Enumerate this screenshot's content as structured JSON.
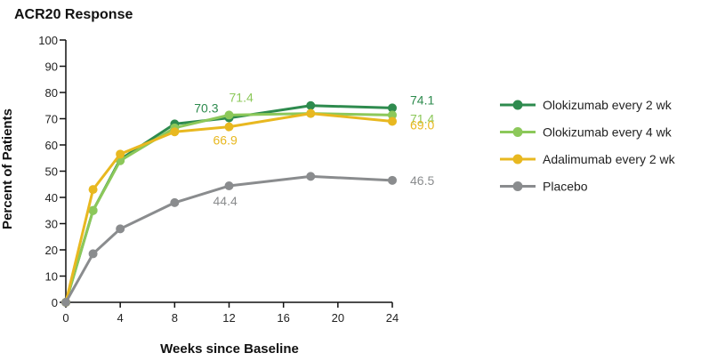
{
  "chart_data": {
    "type": "line",
    "title": "ACR20 Response",
    "xlabel": "Weeks since Baseline",
    "ylabel": "Percent of Patients",
    "xticks": [
      0,
      4,
      8,
      12,
      16,
      20,
      24
    ],
    "yticks": [
      0,
      10,
      20,
      30,
      40,
      50,
      60,
      70,
      80,
      90,
      100
    ],
    "xlim": [
      0,
      24
    ],
    "ylim": [
      0,
      100
    ],
    "grid": false,
    "legend_position": "right",
    "series": [
      {
        "name": "Olokizumab every 2 wk",
        "color": "#2e8b4e",
        "x": [
          0,
          2,
          4,
          8,
          12,
          18,
          24
        ],
        "y": [
          0,
          35,
          54.5,
          68,
          70.3,
          75,
          74.1
        ],
        "labels": [
          {
            "text": "70.3",
            "x": 12,
            "y": 70.3
          },
          {
            "text": "74.1",
            "x": 24,
            "y": 74.1
          }
        ]
      },
      {
        "name": "Olokizumab every 4 wk",
        "color": "#8cc85a",
        "x": [
          0,
          2,
          4,
          8,
          12,
          18,
          24
        ],
        "y": [
          0,
          35,
          54,
          66.5,
          71.4,
          72,
          71.4
        ],
        "labels": [
          {
            "text": "71.4",
            "x": 12,
            "y": 71.4
          },
          {
            "text": "71.4",
            "x": 24,
            "y": 71.4
          }
        ]
      },
      {
        "name": "Adalimumab every 2 wk",
        "color": "#e8b820",
        "x": [
          0,
          2,
          4,
          8,
          12,
          18,
          24
        ],
        "y": [
          0,
          43,
          56.5,
          65,
          66.9,
          72,
          69.0
        ],
        "labels": [
          {
            "text": "66.9",
            "x": 12,
            "y": 66.9
          },
          {
            "text": "69.0",
            "x": 24,
            "y": 69.0
          }
        ]
      },
      {
        "name": "Placebo",
        "color": "#8a8c8e",
        "x": [
          0,
          2,
          4,
          8,
          12,
          18,
          24
        ],
        "y": [
          0,
          18.5,
          28,
          38,
          44.4,
          48,
          46.5
        ],
        "labels": [
          {
            "text": "44.4",
            "x": 12,
            "y": 44.4
          },
          {
            "text": "46.5",
            "x": 24,
            "y": 46.5
          }
        ]
      }
    ]
  }
}
